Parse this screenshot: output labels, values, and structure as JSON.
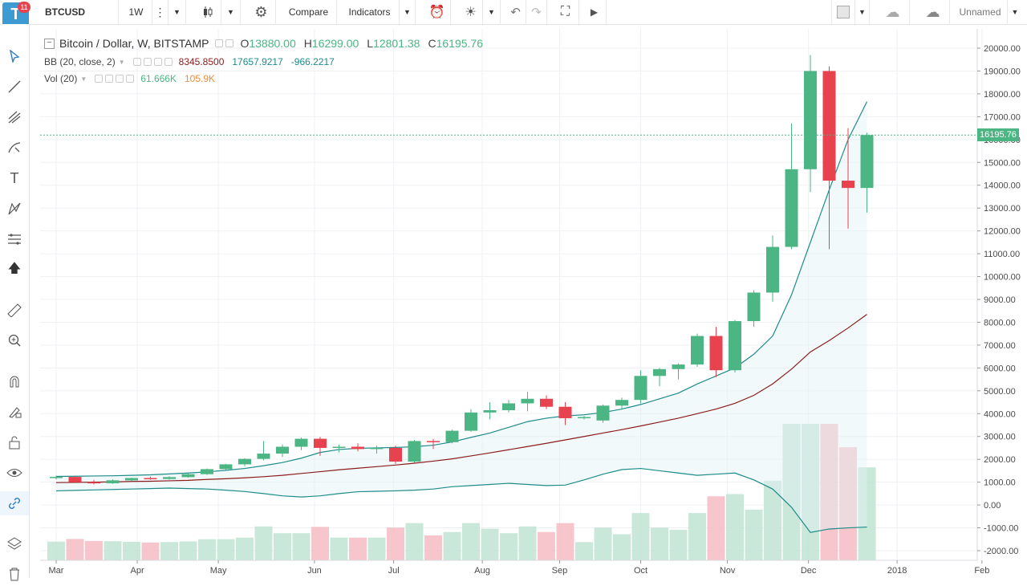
{
  "toolbar": {
    "symbol": "BTCUSD",
    "interval": "1W",
    "compare_label": "Compare",
    "indicators_label": "Indicators",
    "layout_name": "Unnamed",
    "notification_count": "11",
    "logo_letter": "T"
  },
  "legend": {
    "title": "Bitcoin / Dollar, W, BITSTAMP",
    "o_label": "O",
    "o_value": "13880.00",
    "h_label": "H",
    "h_value": "16299.00",
    "l_label": "L",
    "l_value": "12801.38",
    "c_label": "C",
    "c_value": "16195.76",
    "bb_label": "BB (20, close, 2)",
    "bb_basis": "8345.8500",
    "bb_upper": "17657.9217",
    "bb_lower": "-966.2217",
    "vol_label": "Vol (20)",
    "vol_value": "61.666K",
    "vol_ma": "105.9K"
  },
  "price_badge": "16195.76",
  "colors": {
    "up": "#4bb583",
    "down": "#e8424f",
    "bb_upper": "#1e8b8a",
    "bb_basis": "#8b1c1c",
    "vol_ma": "#f28d3a",
    "vol_up": "#bfe4d2",
    "vol_down": "#f5bcc3"
  },
  "left_tools": [
    "cursor-icon",
    "trend-line-icon",
    "pitchfork-icon",
    "brush-icon",
    "text-icon",
    "pattern-icon",
    "fib-icon",
    "arrow-up-icon",
    "ruler-icon",
    "zoom-icon",
    "magnet-icon",
    "lock-draw-icon",
    "lock-icon",
    "eye-icon",
    "link-icon",
    "layers-icon",
    "trash-icon"
  ],
  "chart_data": {
    "type": "candlestick",
    "title": "Bitcoin / Dollar, W, BITSTAMP",
    "y_axis_labels": [
      "20000.00",
      "19000.00",
      "18000.00",
      "17000.00",
      "16000.00",
      "15000.00",
      "14000.00",
      "13000.00",
      "12000.00",
      "11000.00",
      "10000.00",
      "9000.00",
      "8000.00",
      "7000.00",
      "6000.00",
      "5000.00",
      "4000.00",
      "3000.00",
      "2000.00",
      "1000.00",
      "0.00",
      "-1000.00",
      "-2000.00"
    ],
    "ylim": [
      -2000,
      20000
    ],
    "x_axis_labels": [
      {
        "label": "Mar",
        "week": 0
      },
      {
        "label": "Apr",
        "week": 4.3
      },
      {
        "label": "May",
        "week": 8.6
      },
      {
        "label": "Jun",
        "week": 13.7
      },
      {
        "label": "Jul",
        "week": 17.9
      },
      {
        "label": "Aug",
        "week": 22.6
      },
      {
        "label": "Sep",
        "week": 26.7
      },
      {
        "label": "Oct",
        "week": 31.0
      },
      {
        "label": "Nov",
        "week": 35.6
      },
      {
        "label": "Dec",
        "week": 39.9
      },
      {
        "label": "2018",
        "week": 44.6
      },
      {
        "label": "Feb",
        "week": 49.1
      }
    ],
    "candles": [
      {
        "o": 1180,
        "h": 1290,
        "l": 1120,
        "c": 1230
      },
      {
        "o": 1230,
        "h": 1280,
        "l": 990,
        "c": 1000
      },
      {
        "o": 1000,
        "h": 1100,
        "l": 900,
        "c": 950
      },
      {
        "o": 950,
        "h": 1120,
        "l": 930,
        "c": 1080
      },
      {
        "o": 1080,
        "h": 1200,
        "l": 1040,
        "c": 1180
      },
      {
        "o": 1180,
        "h": 1240,
        "l": 1110,
        "c": 1140
      },
      {
        "o": 1140,
        "h": 1260,
        "l": 1110,
        "c": 1220
      },
      {
        "o": 1220,
        "h": 1380,
        "l": 1200,
        "c": 1350
      },
      {
        "o": 1350,
        "h": 1600,
        "l": 1320,
        "c": 1570
      },
      {
        "o": 1570,
        "h": 1800,
        "l": 1520,
        "c": 1780
      },
      {
        "o": 1780,
        "h": 2050,
        "l": 1700,
        "c": 2020
      },
      {
        "o": 2020,
        "h": 2800,
        "l": 1950,
        "c": 2250
      },
      {
        "o": 2250,
        "h": 2650,
        "l": 2100,
        "c": 2550
      },
      {
        "o": 2550,
        "h": 2950,
        "l": 2400,
        "c": 2900
      },
      {
        "o": 2900,
        "h": 2980,
        "l": 2150,
        "c": 2500
      },
      {
        "o": 2500,
        "h": 2650,
        "l": 2300,
        "c": 2550
      },
      {
        "o": 2550,
        "h": 2700,
        "l": 2350,
        "c": 2450
      },
      {
        "o": 2450,
        "h": 2600,
        "l": 2250,
        "c": 2500
      },
      {
        "o": 2500,
        "h": 2600,
        "l": 1800,
        "c": 1900
      },
      {
        "o": 1900,
        "h": 2850,
        "l": 1850,
        "c": 2800
      },
      {
        "o": 2800,
        "h": 2900,
        "l": 2450,
        "c": 2750
      },
      {
        "o": 2750,
        "h": 3300,
        "l": 2700,
        "c": 3250
      },
      {
        "o": 3250,
        "h": 4200,
        "l": 3200,
        "c": 4050
      },
      {
        "o": 4050,
        "h": 4500,
        "l": 3750,
        "c": 4150
      },
      {
        "o": 4150,
        "h": 4600,
        "l": 4050,
        "c": 4450
      },
      {
        "o": 4450,
        "h": 4950,
        "l": 4100,
        "c": 4650
      },
      {
        "o": 4650,
        "h": 4800,
        "l": 4200,
        "c": 4300
      },
      {
        "o": 4300,
        "h": 4500,
        "l": 3500,
        "c": 3800
      },
      {
        "o": 3800,
        "h": 3900,
        "l": 3750,
        "c": 3850
      },
      {
        "o": 3700,
        "h": 4400,
        "l": 3600,
        "c": 4350
      },
      {
        "o": 4350,
        "h": 4700,
        "l": 4200,
        "c": 4600
      },
      {
        "o": 4600,
        "h": 5900,
        "l": 4450,
        "c": 5650
      },
      {
        "o": 5650,
        "h": 6000,
        "l": 5200,
        "c": 5950
      },
      {
        "o": 5950,
        "h": 6200,
        "l": 5500,
        "c": 6150
      },
      {
        "o": 6150,
        "h": 7500,
        "l": 6050,
        "c": 7400
      },
      {
        "o": 7400,
        "h": 7800,
        "l": 5600,
        "c": 5900
      },
      {
        "o": 5900,
        "h": 8100,
        "l": 5800,
        "c": 8050
      },
      {
        "o": 8050,
        "h": 9400,
        "l": 7800,
        "c": 9300
      },
      {
        "o": 9300,
        "h": 11800,
        "l": 8900,
        "c": 11300
      },
      {
        "o": 11300,
        "h": 16700,
        "l": 11200,
        "c": 14700
      },
      {
        "o": 14700,
        "h": 19700,
        "l": 13700,
        "c": 19000
      },
      {
        "o": 19000,
        "h": 19200,
        "l": 11200,
        "c": 14200
      },
      {
        "o": 14200,
        "h": 16500,
        "l": 12100,
        "c": 13880
      },
      {
        "o": 13880,
        "h": 16299,
        "l": 12801.38,
        "c": 16195.76
      }
    ],
    "bb_upper": [
      1250,
      1260,
      1270,
      1280,
      1300,
      1320,
      1360,
      1400,
      1450,
      1520,
      1600,
      1720,
      1860,
      2050,
      2300,
      2430,
      2480,
      2500,
      2520,
      2550,
      2620,
      2760,
      2960,
      3150,
      3400,
      3650,
      3800,
      3900,
      3950,
      4050,
      4200,
      4400,
      4650,
      4900,
      5300,
      5650,
      6000,
      6600,
      7400,
      9200,
      11500,
      13800,
      16000,
      17658
    ],
    "bb_basis": [
      980,
      990,
      1000,
      1010,
      1030,
      1040,
      1060,
      1080,
      1120,
      1150,
      1190,
      1240,
      1300,
      1380,
      1460,
      1540,
      1610,
      1680,
      1750,
      1830,
      1920,
      2020,
      2150,
      2280,
      2420,
      2560,
      2700,
      2850,
      3000,
      3150,
      3300,
      3460,
      3630,
      3800,
      4000,
      4200,
      4450,
      4800,
      5300,
      5950,
      6700,
      7200,
      7750,
      8346
    ],
    "bb_lower": [
      620,
      640,
      660,
      680,
      700,
      720,
      740,
      720,
      700,
      650,
      590,
      500,
      400,
      350,
      400,
      500,
      580,
      600,
      620,
      650,
      700,
      800,
      850,
      900,
      950,
      900,
      850,
      870,
      1100,
      1350,
      1550,
      1600,
      1500,
      1400,
      1300,
      1350,
      1400,
      1100,
      700,
      -100,
      -1200,
      -1050,
      -1000,
      -966
    ]
  }
}
